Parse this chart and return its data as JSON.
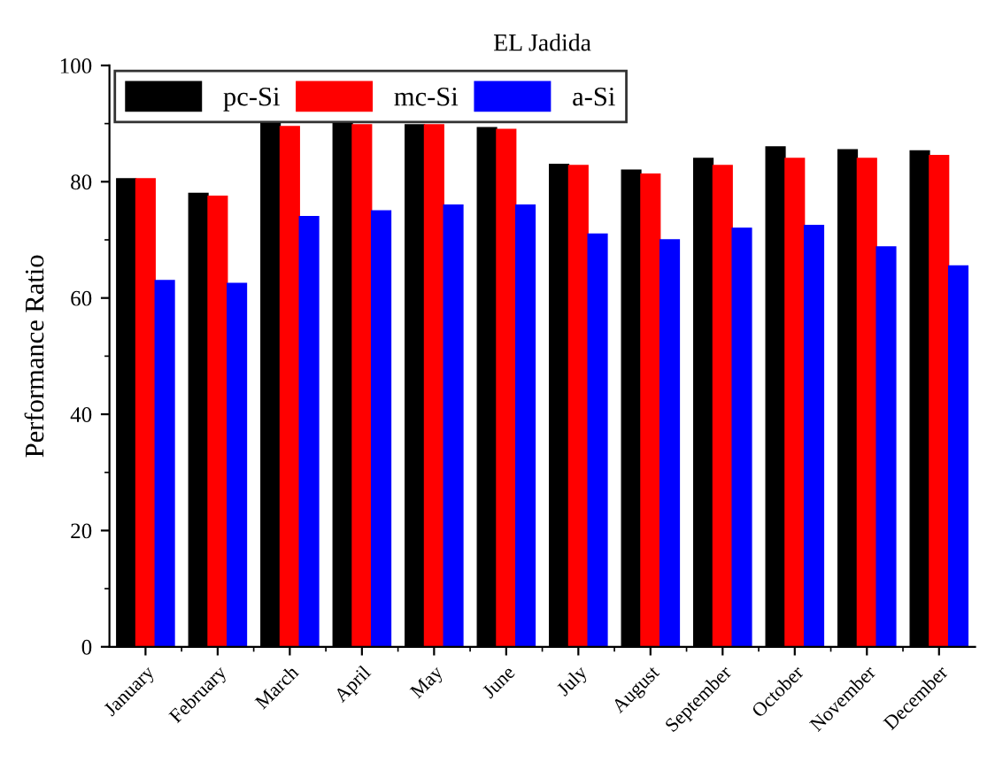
{
  "chart_data": {
    "type": "bar",
    "title": "EL Jadida",
    "ylabel": "Performance Ratio",
    "categories": [
      "January",
      "February",
      "March",
      "April",
      "May",
      "June",
      "July",
      "August",
      "September",
      "October",
      "November",
      "December"
    ],
    "series": [
      {
        "name": "pc-Si",
        "color": "#000000",
        "values": [
          80.5,
          78,
          90,
          90,
          89.8,
          89.3,
          83,
          82,
          84,
          86,
          85.5,
          85.3
        ]
      },
      {
        "name": "mc-Si",
        "color": "#ff0000",
        "values": [
          80.5,
          77.5,
          89.5,
          89.8,
          89.8,
          89,
          82.8,
          81.3,
          82.8,
          84,
          84,
          84.5
        ]
      },
      {
        "name": "a-Si",
        "color": "#0000ff",
        "values": [
          63,
          62.5,
          74,
          75,
          76,
          76,
          71,
          70,
          72,
          72.5,
          68.8,
          65.5
        ]
      }
    ],
    "ylim": [
      0,
      100
    ],
    "yticks": [
      0,
      20,
      40,
      60,
      80,
      100
    ],
    "grid": false,
    "legend": "top left"
  }
}
